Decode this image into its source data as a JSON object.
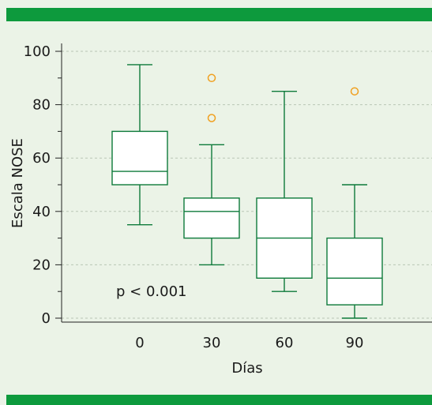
{
  "chart_data": {
    "type": "boxplot",
    "xlabel": "Días",
    "ylabel": "Escala NOSE",
    "ylim": [
      0,
      100
    ],
    "yticks": [
      0,
      20,
      40,
      60,
      80,
      100
    ],
    "grid": "horizontal dashed",
    "categories": [
      "0",
      "30",
      "60",
      "90"
    ],
    "boxes": [
      {
        "category": "0",
        "whisker_low": 35,
        "q1": 50,
        "median": 55,
        "q3": 70,
        "whisker_high": 95,
        "outliers": []
      },
      {
        "category": "30",
        "whisker_low": 20,
        "q1": 30,
        "median": 40,
        "q3": 45,
        "whisker_high": 65,
        "outliers": [
          75,
          90
        ]
      },
      {
        "category": "60",
        "whisker_low": 10,
        "q1": 15,
        "median": 30,
        "q3": 45,
        "whisker_high": 85,
        "outliers": []
      },
      {
        "category": "90",
        "whisker_low": 0,
        "q1": 5,
        "median": 15,
        "q3": 30,
        "whisker_high": 50,
        "outliers": [
          85
        ]
      }
    ],
    "annotation": "p < 0.001",
    "colors": {
      "box": "#0d7a3a",
      "outlier": "#f0a020",
      "band": "#0d9a3d",
      "background": "#ebf3e7",
      "grid": "#b9c6b5"
    }
  }
}
